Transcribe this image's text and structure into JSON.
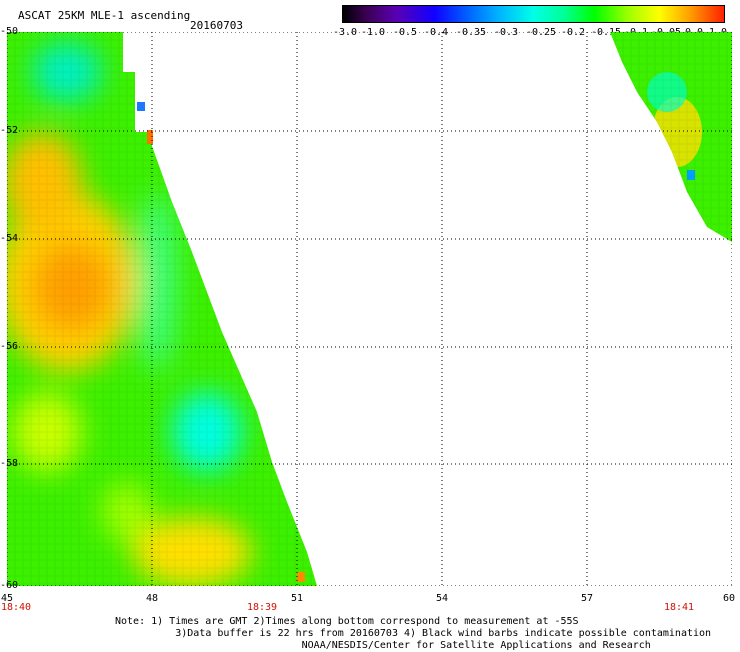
{
  "header": {
    "title": "ASCAT 25KM MLE-1 ascending",
    "date": "20160703"
  },
  "colorbar": {
    "labels": [
      "-3.0",
      "-1.0",
      "-0.5",
      "-0.4",
      "-0.35",
      "-0.3",
      "-0.25",
      "-0.2",
      "-0.15",
      "-0.1",
      "-0.05",
      "0.0",
      "1.0"
    ]
  },
  "map": {
    "lat_labels": [
      "-50",
      "-52",
      "-54",
      "-56",
      "-58",
      "-60"
    ],
    "lon_labels": [
      "45",
      "48",
      "51",
      "54",
      "57",
      "60"
    ],
    "time_labels": [
      "18:40",
      "18:39",
      "18:41"
    ]
  },
  "footer": {
    "note_line1": "Note: 1) Times are GMT 2)Times along bottom correspond to measurement at -55S",
    "note_line2": "3)Data buffer is 22 hrs from 20160703 4) Black wind barbs indicate possible contamination",
    "note_line3": "NOAA/NESDIS/Center for Satellite Applications and Research"
  }
}
